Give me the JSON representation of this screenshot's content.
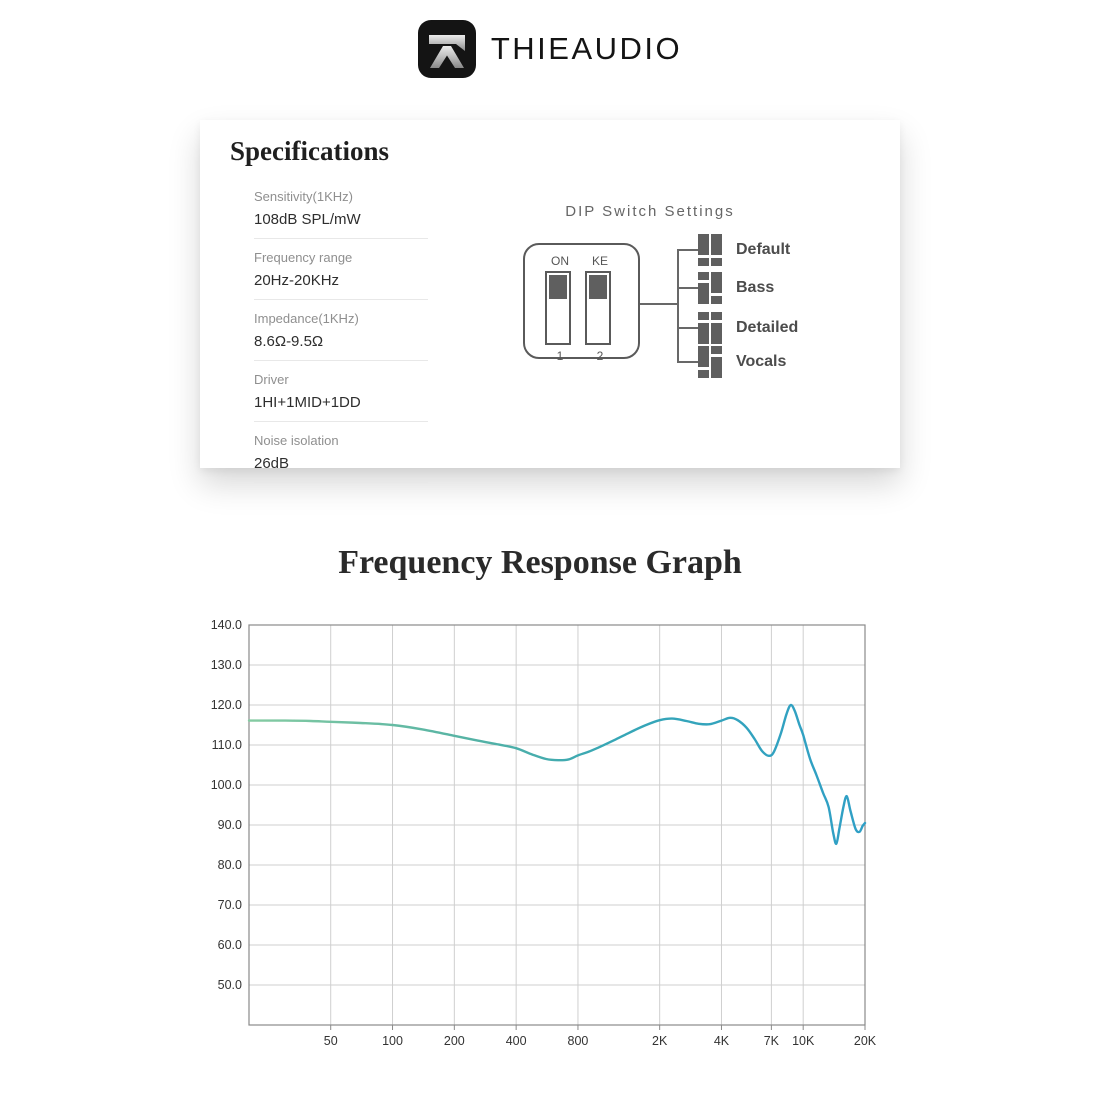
{
  "brand": {
    "name": "THIEAUDIO"
  },
  "specs_card": {
    "title": "Specifications",
    "items": [
      {
        "label": "Sensitivity(1KHz)",
        "value": "108dB SPL/mW"
      },
      {
        "label": "Frequency range",
        "value": "20Hz-20KHz"
      },
      {
        "label": "Impedance(1KHz)",
        "value": "8.6Ω-9.5Ω"
      },
      {
        "label": "Driver",
        "value": "1HI+1MID+1DD"
      },
      {
        "label": "Noise isolation",
        "value": "26dB"
      }
    ]
  },
  "dip_switch": {
    "title": "DIP Switch Settings",
    "switch_top_labels": [
      "ON",
      "KE"
    ],
    "switch_bottom_labels": [
      "1",
      "2"
    ],
    "modes": [
      {
        "label": "Default",
        "pattern": [
          "down",
          "down"
        ]
      },
      {
        "label": "Bass",
        "pattern": [
          "up",
          "down"
        ]
      },
      {
        "label": "Detailed",
        "pattern": [
          "up",
          "up"
        ]
      },
      {
        "label": "Vocals",
        "pattern": [
          "down",
          "up"
        ]
      }
    ]
  },
  "chart": {
    "title": "Frequency Response Graph"
  },
  "chart_data": {
    "type": "line",
    "title": "Frequency Response Graph",
    "x_scale": "log",
    "x_unit": "Hz",
    "y_unit": "dB SPL",
    "xlim": [
      20,
      20000
    ],
    "ylim": [
      40,
      140
    ],
    "grid": true,
    "x_ticks": [
      {
        "value": 50,
        "label": "50"
      },
      {
        "value": 100,
        "label": "100"
      },
      {
        "value": 200,
        "label": "200"
      },
      {
        "value": 400,
        "label": "400"
      },
      {
        "value": 800,
        "label": "800"
      },
      {
        "value": 2000,
        "label": "2K"
      },
      {
        "value": 4000,
        "label": "4K"
      },
      {
        "value": 7000,
        "label": "7K"
      },
      {
        "value": 10000,
        "label": "10K"
      },
      {
        "value": 20000,
        "label": "20K"
      }
    ],
    "y_ticks": [
      {
        "value": 140,
        "label": "140.0"
      },
      {
        "value": 130,
        "label": "130.0"
      },
      {
        "value": 120,
        "label": "120.0"
      },
      {
        "value": 110,
        "label": "110.0"
      },
      {
        "value": 100,
        "label": "100.0"
      },
      {
        "value": 90,
        "label": "90.0"
      },
      {
        "value": 80,
        "label": "80.0"
      },
      {
        "value": 70,
        "label": "70.0"
      },
      {
        "value": 60,
        "label": "60.0"
      },
      {
        "value": 50,
        "label": "50.0"
      }
    ],
    "line_gradient": [
      "#85cba2",
      "#56b3a4",
      "#36a6b6",
      "#2f9fc6"
    ],
    "series": [
      {
        "name": "frequency-response",
        "points": [
          [
            20,
            116.1
          ],
          [
            30,
            116.1
          ],
          [
            40,
            116.0
          ],
          [
            50,
            115.8
          ],
          [
            70,
            115.5
          ],
          [
            100,
            115.0
          ],
          [
            140,
            113.9
          ],
          [
            200,
            112.3
          ],
          [
            260,
            111.1
          ],
          [
            330,
            110.1
          ],
          [
            400,
            109.2
          ],
          [
            480,
            107.6
          ],
          [
            560,
            106.5
          ],
          [
            640,
            106.2
          ],
          [
            720,
            106.4
          ],
          [
            800,
            107.4
          ],
          [
            900,
            108.3
          ],
          [
            1000,
            109.3
          ],
          [
            1200,
            111.2
          ],
          [
            1400,
            112.9
          ],
          [
            1700,
            114.9
          ],
          [
            2000,
            116.2
          ],
          [
            2300,
            116.6
          ],
          [
            2700,
            116.0
          ],
          [
            3100,
            115.3
          ],
          [
            3500,
            115.2
          ],
          [
            4000,
            116.1
          ],
          [
            4400,
            116.8
          ],
          [
            4800,
            116.2
          ],
          [
            5300,
            114.3
          ],
          [
            5800,
            111.5
          ],
          [
            6300,
            108.5
          ],
          [
            6800,
            107.3
          ],
          [
            7200,
            108.3
          ],
          [
            7800,
            113.0
          ],
          [
            8300,
            117.8
          ],
          [
            8700,
            120.0
          ],
          [
            9100,
            118.5
          ],
          [
            9600,
            115.0
          ],
          [
            10000,
            112.5
          ],
          [
            10800,
            106.5
          ],
          [
            11600,
            102.5
          ],
          [
            12500,
            98.0
          ],
          [
            13300,
            94.5
          ],
          [
            14000,
            88.0
          ],
          [
            14500,
            85.3
          ],
          [
            15000,
            89.0
          ],
          [
            15700,
            94.5
          ],
          [
            16300,
            97.2
          ],
          [
            17000,
            93.5
          ],
          [
            18000,
            89.0
          ],
          [
            18800,
            88.3
          ],
          [
            19500,
            89.8
          ],
          [
            20000,
            90.5
          ]
        ]
      }
    ]
  }
}
